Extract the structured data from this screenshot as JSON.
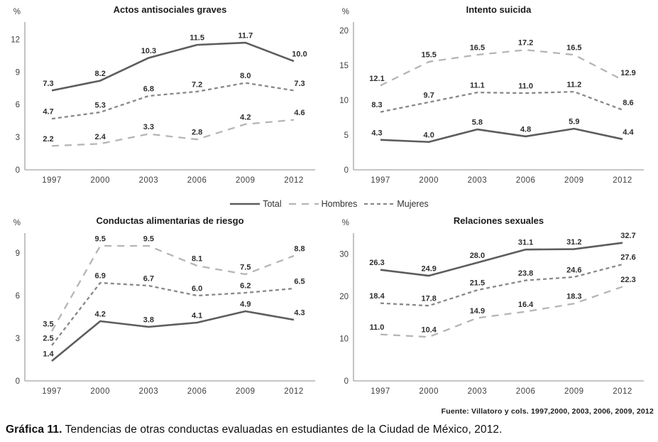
{
  "page": {
    "caption_label": "Gráfica 11.",
    "caption_text": " Tendencias de otras conductas evaluadas en estudiantes de la Ciudad de México, 2012.",
    "fuente": "Fuente: Villatoro y cols. 1997,2000, 2003, 2006, 2009, 2012"
  },
  "legend": {
    "items": [
      {
        "label": "Total",
        "key": "total"
      },
      {
        "label": "Hombres",
        "key": "hombres"
      },
      {
        "label": "Mujeres",
        "key": "mujeres"
      }
    ]
  },
  "styles": {
    "total": {
      "color": "#5d5d5f",
      "dash": "",
      "width": 2.6
    },
    "hombres": {
      "color": "#b5b5b7",
      "dash": "10,8",
      "width": 2.3
    },
    "mujeres": {
      "color": "#88888b",
      "dash": "5,4",
      "width": 2.3
    },
    "axis_color": "#a3a3a3",
    "label_color": "#2d2d2d",
    "tick_color": "#3f3f3f",
    "title_color": "#1b1b1b"
  },
  "chart_data": [
    {
      "type": "line",
      "title": "Actos antisociales graves",
      "unit": "%",
      "x": [
        "1997",
        "2000",
        "2003",
        "2006",
        "2009",
        "2012"
      ],
      "yticks": [
        0,
        3,
        6,
        9,
        12
      ],
      "ylim": [
        0,
        13.6
      ],
      "grid": false,
      "series": [
        {
          "name": "Total",
          "key": "total",
          "values": [
            7.3,
            8.2,
            10.3,
            11.5,
            11.7,
            10.0
          ]
        },
        {
          "name": "Hombres",
          "key": "hombres",
          "values": [
            2.2,
            2.4,
            3.3,
            2.8,
            4.2,
            4.6
          ]
        },
        {
          "name": "Mujeres",
          "key": "mujeres",
          "values": [
            4.7,
            5.3,
            6.8,
            7.2,
            8.0,
            7.3
          ]
        }
      ]
    },
    {
      "type": "line",
      "title": "Intento suicida",
      "unit": "%",
      "x": [
        "1997",
        "2000",
        "2003",
        "2006",
        "2009",
        "2012"
      ],
      "yticks": [
        0,
        5,
        10,
        15,
        20
      ],
      "ylim": [
        0,
        21.2
      ],
      "grid": false,
      "series": [
        {
          "name": "Total",
          "key": "total",
          "values": [
            4.3,
            4.0,
            5.8,
            4.8,
            5.9,
            4.4
          ]
        },
        {
          "name": "Hombres",
          "key": "hombres",
          "values": [
            12.1,
            15.5,
            16.5,
            17.2,
            16.5,
            12.9
          ]
        },
        {
          "name": "Mujeres",
          "key": "mujeres",
          "values": [
            8.3,
            9.7,
            11.1,
            11.0,
            11.2,
            8.6
          ]
        }
      ]
    },
    {
      "type": "line",
      "title": "Conductas alimentarias de riesgo",
      "unit": "%",
      "x": [
        "1997",
        "2000",
        "2003",
        "2006",
        "2009",
        "2012"
      ],
      "yticks": [
        0,
        3,
        6,
        9
      ],
      "ylim": [
        0,
        10.4
      ],
      "grid": false,
      "series": [
        {
          "name": "Total",
          "key": "total",
          "values": [
            1.4,
            4.2,
            3.8,
            4.1,
            4.9,
            4.3
          ]
        },
        {
          "name": "Hombres",
          "key": "hombres",
          "values": [
            3.5,
            9.5,
            9.5,
            8.1,
            7.5,
            8.8
          ]
        },
        {
          "name": "Mujeres",
          "key": "mujeres",
          "values": [
            2.5,
            6.9,
            6.7,
            6.0,
            6.2,
            6.5
          ]
        }
      ]
    },
    {
      "type": "line",
      "title": "Relaciones sexuales",
      "unit": "%",
      "x": [
        "1997",
        "2000",
        "2003",
        "2006",
        "2009",
        "2012"
      ],
      "yticks": [
        0,
        10,
        20,
        30
      ],
      "ylim": [
        0,
        35
      ],
      "grid": false,
      "series": [
        {
          "name": "Total",
          "key": "total",
          "values": [
            26.3,
            24.9,
            28.0,
            31.1,
            31.2,
            32.7
          ]
        },
        {
          "name": "Hombres",
          "key": "hombres",
          "values": [
            11.0,
            10.4,
            14.9,
            16.4,
            18.3,
            22.3
          ]
        },
        {
          "name": "Mujeres",
          "key": "mujeres",
          "values": [
            18.4,
            17.8,
            21.5,
            23.8,
            24.6,
            27.6
          ]
        }
      ]
    }
  ]
}
